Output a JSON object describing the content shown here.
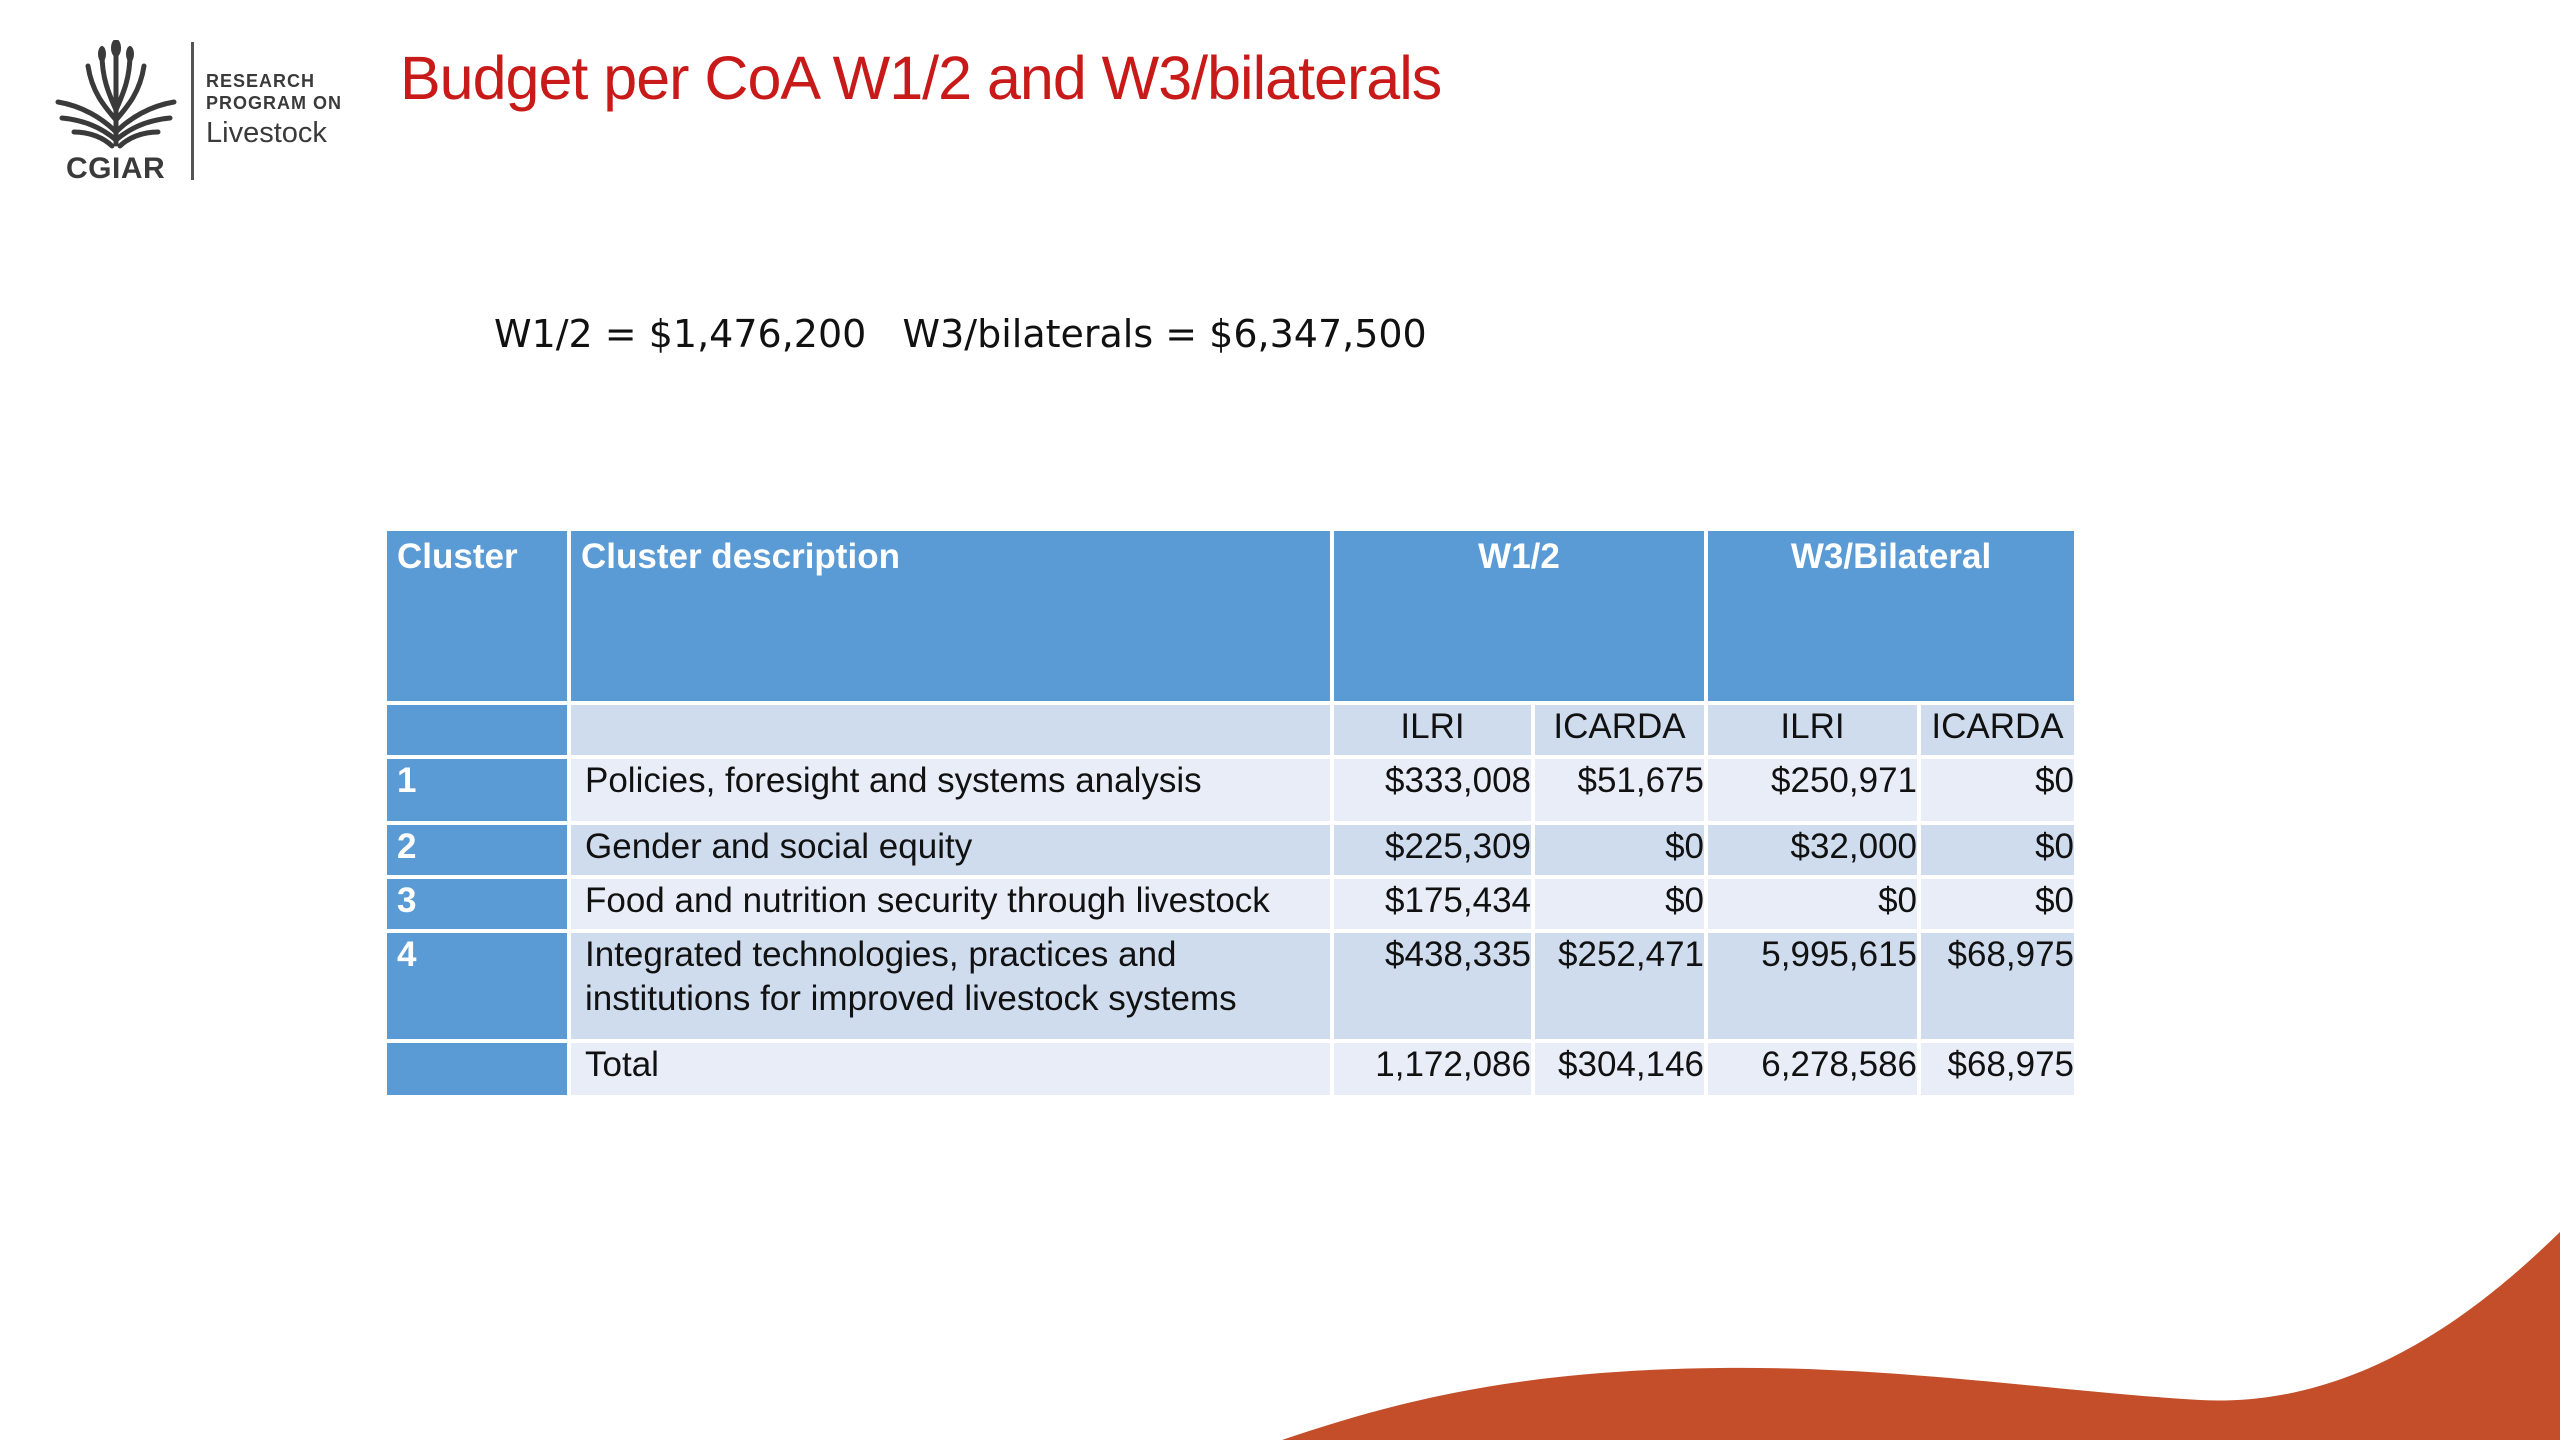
{
  "logo": {
    "org": "CGIAR",
    "line1": "RESEARCH",
    "line2": "PROGRAM ON",
    "line3": "Livestock"
  },
  "title": "Budget per CoA W1/2 and W3/bilaterals",
  "summary": "W1/2 = $1,476,200   W3/bilaterals = $6,347,500",
  "table": {
    "headers": {
      "cluster": "Cluster",
      "description": "Cluster description",
      "w12": "W1/2",
      "w3": "W3/Bilateral"
    },
    "subheaders": [
      "ILRI",
      "ICARDA",
      "ILRI",
      "ICARDA"
    ],
    "rows": [
      {
        "cluster": "1",
        "description": "Policies, foresight and systems analysis",
        "w12_ilri": "$333,008",
        "w12_icarda": "$51,675",
        "w3_ilri": "$250,971",
        "w3_icarda": "$0"
      },
      {
        "cluster": "2",
        "description": "Gender and social equity",
        "w12_ilri": "$225,309",
        "w12_icarda": "$0",
        "w3_ilri": "$32,000",
        "w3_icarda": "$0"
      },
      {
        "cluster": "3",
        "description": "Food and nutrition security through livestock",
        "w12_ilri": "$175,434",
        "w12_icarda": "$0",
        "w3_ilri": "$0",
        "w3_icarda": "$0"
      },
      {
        "cluster": "4",
        "description": "Integrated technologies, practices and institutions for improved livestock systems",
        "w12_ilri": "$438,335",
        "w12_icarda": "$252,471",
        "w3_ilri": "5,995,615",
        "w3_icarda": "$68,975"
      }
    ],
    "total": {
      "label": "Total",
      "w12_ilri": "1,172,086",
      "w12_icarda": "$304,146",
      "w3_ilri": "6,278,586",
      "w3_icarda": "$68,975"
    }
  },
  "colors": {
    "title": "#c91a1a",
    "header": "#5b9bd5",
    "band_dark": "#cfdcee",
    "band_light": "#e8edf7",
    "wave": "#c34e29"
  }
}
